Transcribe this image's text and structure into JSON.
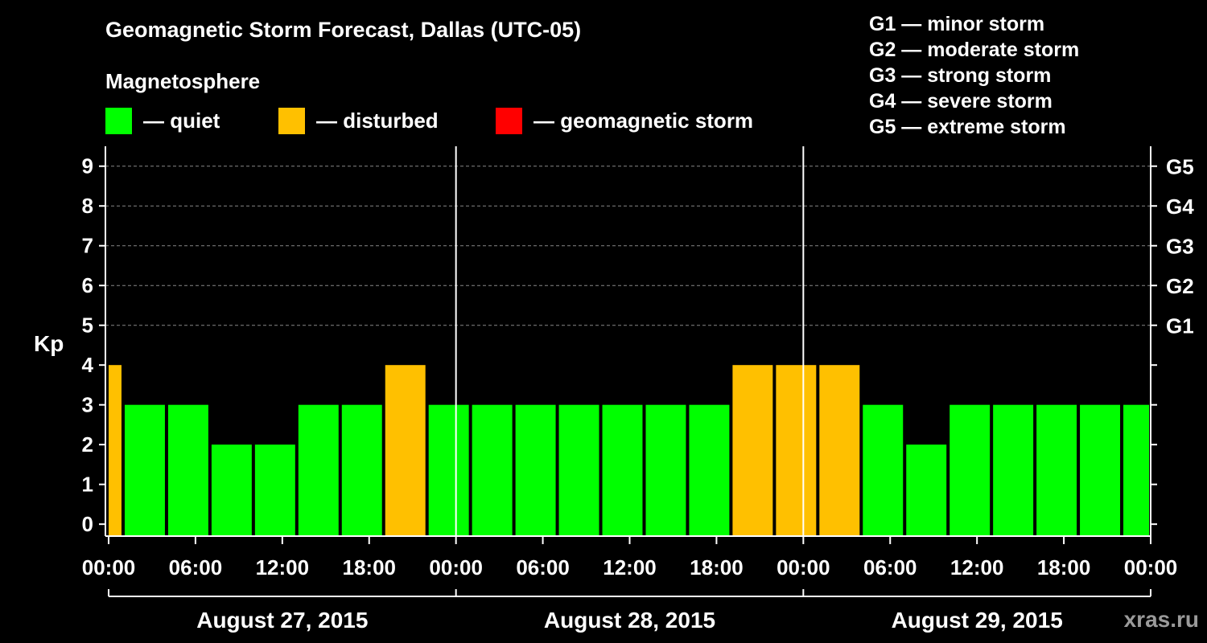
{
  "title": "Geomagnetic Storm Forecast, Dallas (UTC-05)",
  "subtitle": "Magnetosphere",
  "legend": [
    {
      "label": "— quiet",
      "color": "#00ff00"
    },
    {
      "label": "— disturbed",
      "color": "#ffc000"
    },
    {
      "label": "— geomagnetic storm",
      "color": "#ff0000"
    }
  ],
  "storm_scale": [
    "G1 — minor storm",
    "G2 — moderate storm",
    "G3 — strong storm",
    "G4 — severe storm",
    "G5 — extreme storm"
  ],
  "watermark": "xras.ru",
  "chart_data": {
    "type": "bar",
    "title": "Geomagnetic Storm Forecast, Dallas (UTC-05)",
    "ylabel": "Kp",
    "ylim": [
      -0.3,
      9.5
    ],
    "yticks": [
      0,
      1,
      2,
      3,
      4,
      5,
      6,
      7,
      8,
      9
    ],
    "right_ticks": [
      {
        "kp": 5,
        "label": "G1"
      },
      {
        "kp": 6,
        "label": "G2"
      },
      {
        "kp": 7,
        "label": "G3"
      },
      {
        "kp": 8,
        "label": "G4"
      },
      {
        "kp": 9,
        "label": "G5"
      }
    ],
    "x_hours_range": [
      0,
      72
    ],
    "xticks": [
      {
        "hour": 0,
        "label": "00:00"
      },
      {
        "hour": 6,
        "label": "06:00"
      },
      {
        "hour": 12,
        "label": "12:00"
      },
      {
        "hour": 18,
        "label": "18:00"
      },
      {
        "hour": 24,
        "label": "00:00"
      },
      {
        "hour": 30,
        "label": "06:00"
      },
      {
        "hour": 36,
        "label": "12:00"
      },
      {
        "hour": 42,
        "label": "18:00"
      },
      {
        "hour": 48,
        "label": "00:00"
      },
      {
        "hour": 54,
        "label": "06:00"
      },
      {
        "hour": 60,
        "label": "12:00"
      },
      {
        "hour": 66,
        "label": "18:00"
      },
      {
        "hour": 72,
        "label": "00:00"
      }
    ],
    "day_separators": [
      24,
      48
    ],
    "dates": [
      {
        "label": "August 27, 2015",
        "start": 0,
        "end": 24
      },
      {
        "label": "August 28, 2015",
        "start": 24,
        "end": 48
      },
      {
        "label": "August 29, 2015",
        "start": 48,
        "end": 72
      }
    ],
    "bars": [
      {
        "start": 0,
        "end": 1,
        "kp": 4,
        "status": "disturbed"
      },
      {
        "start": 1,
        "end": 4,
        "kp": 3,
        "status": "quiet"
      },
      {
        "start": 4,
        "end": 7,
        "kp": 3,
        "status": "quiet"
      },
      {
        "start": 7,
        "end": 10,
        "kp": 2,
        "status": "quiet"
      },
      {
        "start": 10,
        "end": 13,
        "kp": 2,
        "status": "quiet"
      },
      {
        "start": 13,
        "end": 16,
        "kp": 3,
        "status": "quiet"
      },
      {
        "start": 16,
        "end": 19,
        "kp": 3,
        "status": "quiet"
      },
      {
        "start": 19,
        "end": 22,
        "kp": 4,
        "status": "disturbed"
      },
      {
        "start": 22,
        "end": 25,
        "kp": 3,
        "status": "quiet"
      },
      {
        "start": 25,
        "end": 28,
        "kp": 3,
        "status": "quiet"
      },
      {
        "start": 28,
        "end": 31,
        "kp": 3,
        "status": "quiet"
      },
      {
        "start": 31,
        "end": 34,
        "kp": 3,
        "status": "quiet"
      },
      {
        "start": 34,
        "end": 37,
        "kp": 3,
        "status": "quiet"
      },
      {
        "start": 37,
        "end": 40,
        "kp": 3,
        "status": "quiet"
      },
      {
        "start": 40,
        "end": 43,
        "kp": 3,
        "status": "quiet"
      },
      {
        "start": 43,
        "end": 46,
        "kp": 4,
        "status": "disturbed"
      },
      {
        "start": 46,
        "end": 49,
        "kp": 4,
        "status": "disturbed"
      },
      {
        "start": 49,
        "end": 52,
        "kp": 4,
        "status": "disturbed"
      },
      {
        "start": 52,
        "end": 55,
        "kp": 3,
        "status": "quiet"
      },
      {
        "start": 55,
        "end": 58,
        "kp": 2,
        "status": "quiet"
      },
      {
        "start": 58,
        "end": 61,
        "kp": 3,
        "status": "quiet"
      },
      {
        "start": 61,
        "end": 64,
        "kp": 3,
        "status": "quiet"
      },
      {
        "start": 64,
        "end": 67,
        "kp": 3,
        "status": "quiet"
      },
      {
        "start": 67,
        "end": 70,
        "kp": 3,
        "status": "quiet"
      },
      {
        "start": 70,
        "end": 72,
        "kp": 3,
        "status": "quiet"
      }
    ],
    "colors": {
      "quiet": "#00ff00",
      "disturbed": "#ffc000",
      "storm": "#ff0000",
      "grid": "#888888",
      "axis": "#ffffff"
    }
  }
}
